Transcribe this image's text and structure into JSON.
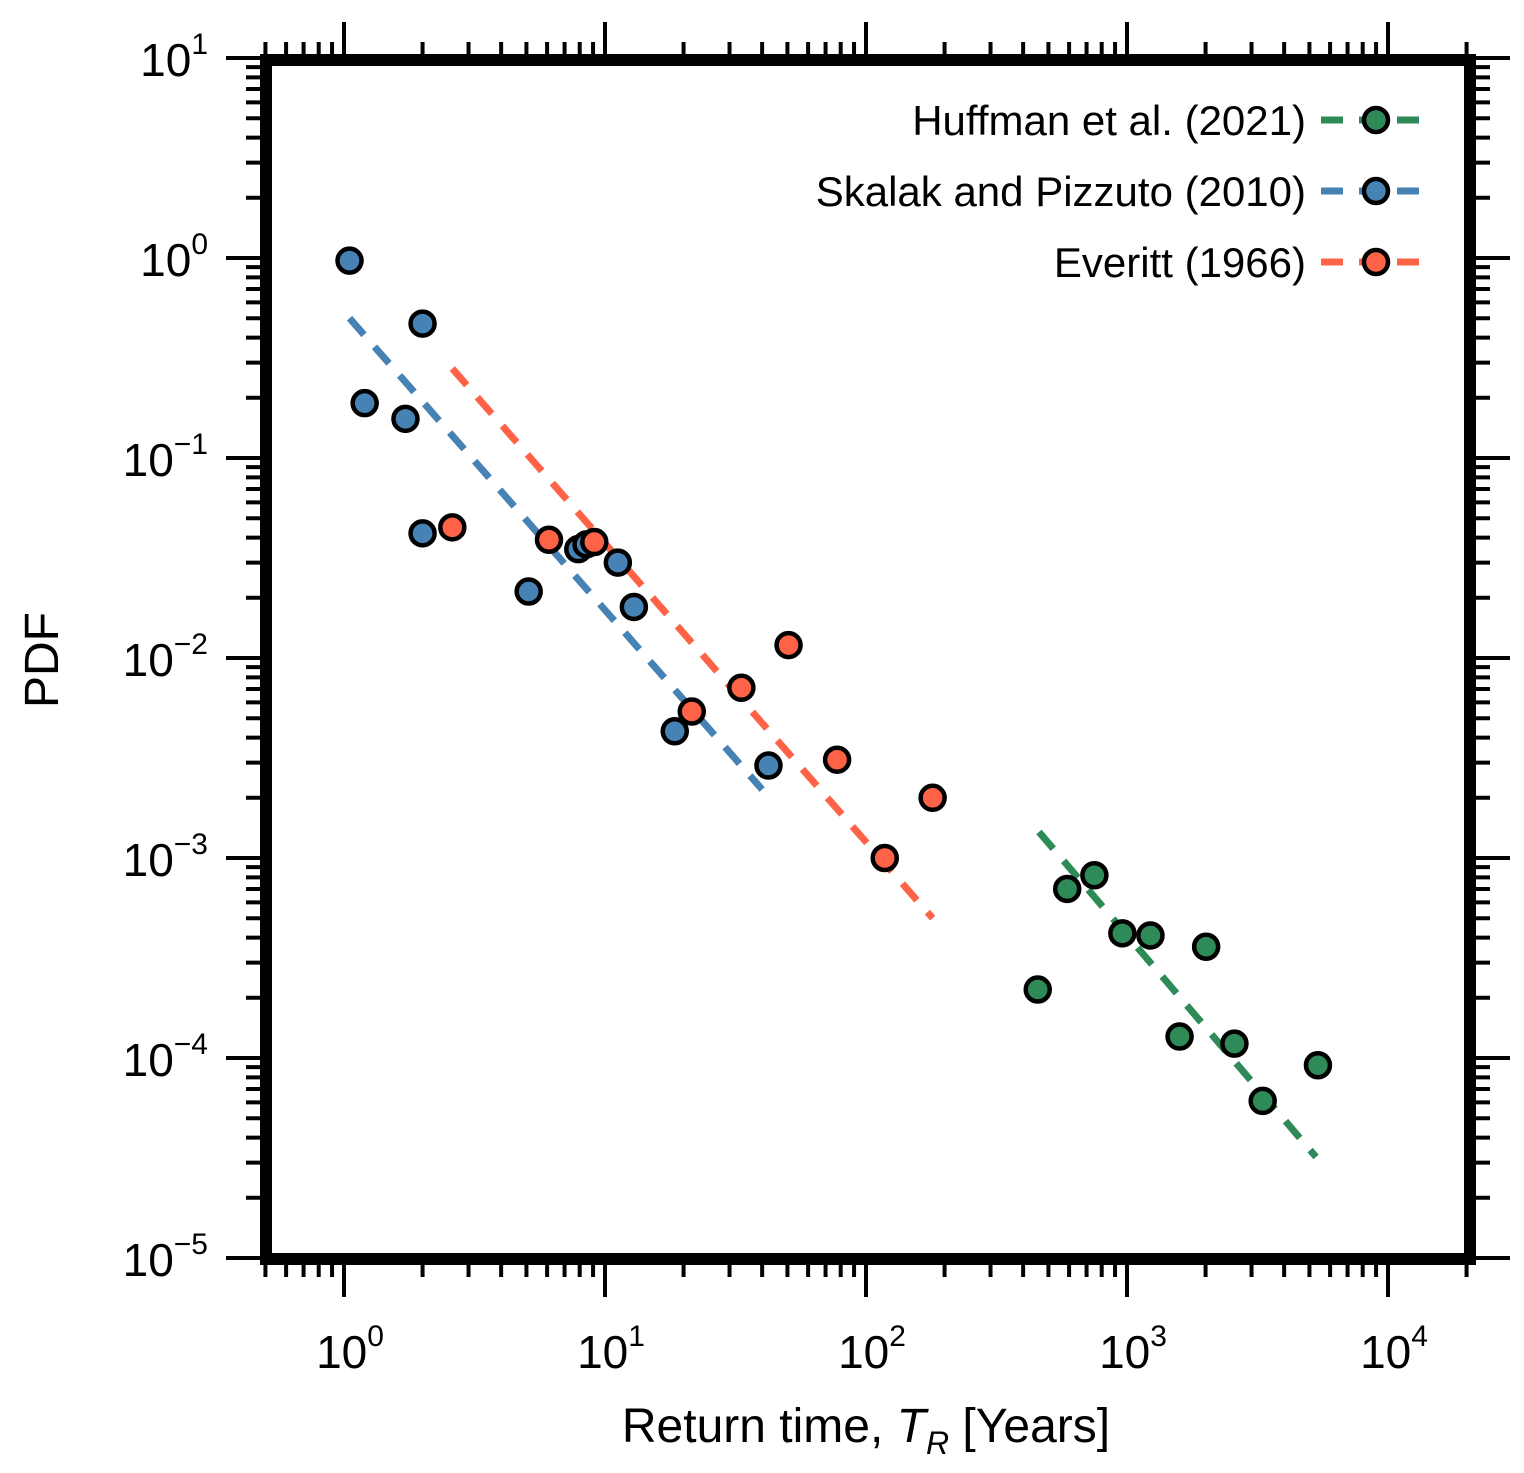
{
  "chart_data": {
    "type": "scatter",
    "xlabel_prefix": "Return time, ",
    "xlabel_symbol": "T",
    "xlabel_subscript": "R",
    "xlabel_suffix": " [Years]",
    "ylabel": "PDF",
    "x_scale": "log",
    "y_scale": "log",
    "xlim": [
      0.5,
      20000
    ],
    "ylim": [
      1e-05,
      10
    ],
    "grid": false,
    "legend_position": "top-right",
    "x_ticks": [
      {
        "base": "10",
        "exp": "0",
        "value": 1
      },
      {
        "base": "10",
        "exp": "1",
        "value": 10
      },
      {
        "base": "10",
        "exp": "2",
        "value": 100
      },
      {
        "base": "10",
        "exp": "3",
        "value": 1000
      },
      {
        "base": "10",
        "exp": "4",
        "value": 10000
      }
    ],
    "y_ticks": [
      {
        "base": "10",
        "exp": "1",
        "value": 10
      },
      {
        "base": "10",
        "exp": "0",
        "value": 1
      },
      {
        "base": "10",
        "exp": "−1",
        "value": 0.1
      },
      {
        "base": "10",
        "exp": "−2",
        "value": 0.01
      },
      {
        "base": "10",
        "exp": "−3",
        "value": 0.001
      },
      {
        "base": "10",
        "exp": "−4",
        "value": 0.0001
      },
      {
        "base": "10",
        "exp": "−5",
        "value": 1e-05
      }
    ],
    "series": [
      {
        "name": "Huffman et al. (2021)",
        "color": "#2e8b57",
        "points": [
          [
            455,
            0.00022
          ],
          [
            590,
            0.0007
          ],
          [
            750,
            0.00082
          ],
          [
            960,
            0.00042
          ],
          [
            1230,
            0.00041
          ],
          [
            1590,
            0.000128
          ],
          [
            2010,
            0.00036
          ],
          [
            2580,
            0.000118
          ],
          [
            3310,
            6.1e-05
          ],
          [
            5390,
            9.2e-05
          ]
        ],
        "fit": [
          [
            460,
            0.00135
          ],
          [
            5300,
            3.2e-05
          ]
        ]
      },
      {
        "name": "Skalak and Pizzuto (2010)",
        "color": "#4682b4",
        "points": [
          [
            1.05,
            0.97
          ],
          [
            1.2,
            0.188
          ],
          [
            1.72,
            0.157
          ],
          [
            2.0,
            0.47
          ],
          [
            2.0,
            0.042
          ],
          [
            5.1,
            0.0215
          ],
          [
            7.9,
            0.035
          ],
          [
            8.5,
            0.037
          ],
          [
            11.2,
            0.03
          ],
          [
            12.9,
            0.018
          ],
          [
            18.5,
            0.0043
          ],
          [
            42.3,
            0.0029
          ]
        ],
        "fit": [
          [
            1.05,
            0.5
          ],
          [
            40,
            0.0022
          ]
        ]
      },
      {
        "name": "Everitt (1966)",
        "color": "#ff6347",
        "points": [
          [
            2.6,
            0.045
          ],
          [
            6.1,
            0.039
          ],
          [
            9.1,
            0.038
          ],
          [
            21.5,
            0.0054
          ],
          [
            33.3,
            0.0071
          ],
          [
            50.5,
            0.0116
          ],
          [
            77.5,
            0.0031
          ],
          [
            118,
            0.001
          ],
          [
            180,
            0.002
          ]
        ],
        "fit": [
          [
            2.6,
            0.28
          ],
          [
            180,
            0.0005
          ]
        ]
      }
    ]
  }
}
